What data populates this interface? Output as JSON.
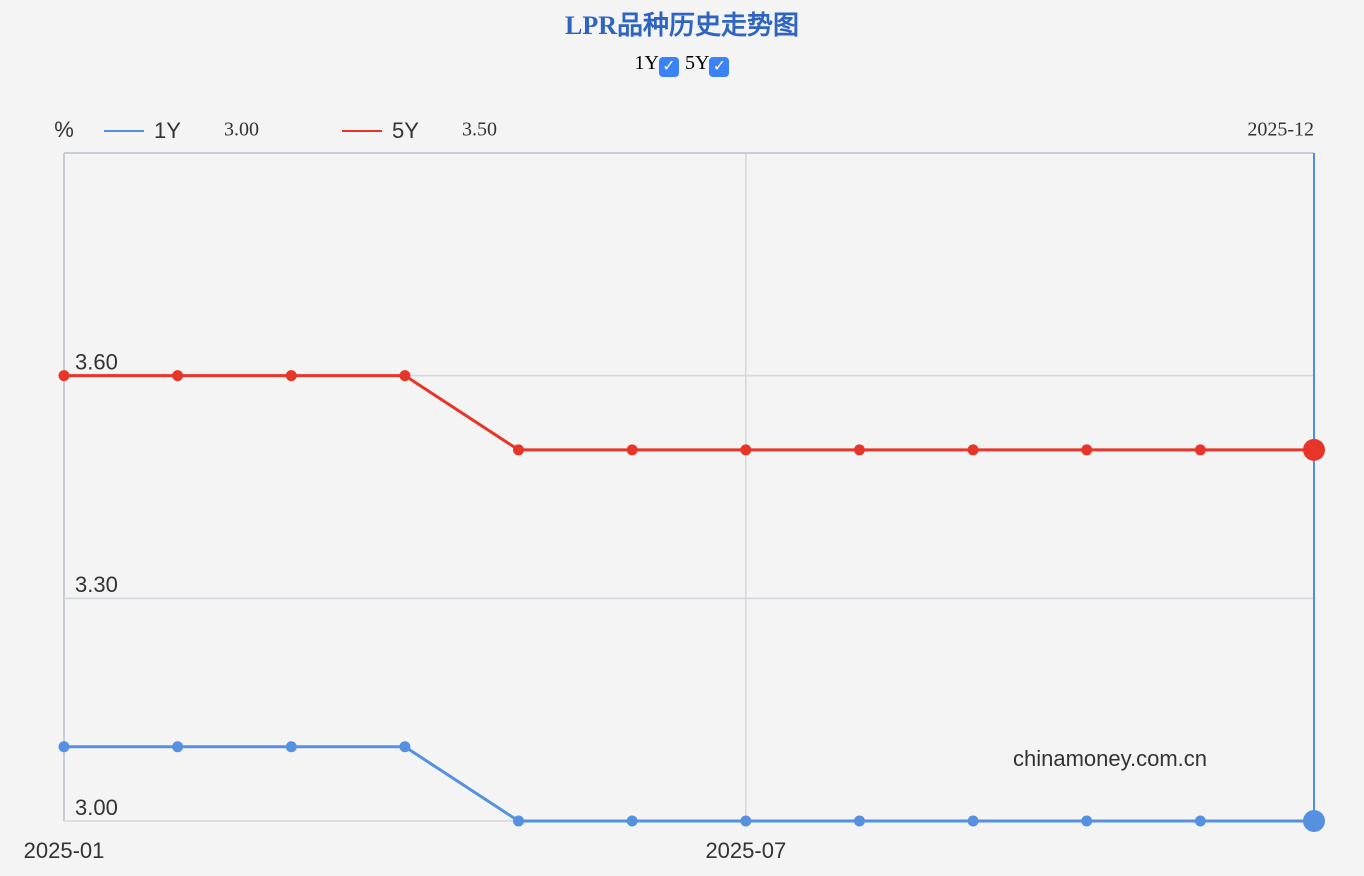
{
  "chart_data": {
    "type": "line",
    "title": "LPR品种历史走势图",
    "y_unit": "%",
    "watermark": "chinamoney.com.cn",
    "categories": [
      "2025-01",
      null,
      null,
      null,
      null,
      null,
      "2025-07",
      null,
      null,
      null,
      null,
      "2025-12"
    ],
    "series": [
      {
        "name": "1Y",
        "color": "#5591e0",
        "values": [
          3.1,
          3.1,
          3.1,
          3.1,
          3.0,
          3.0,
          3.0,
          3.0,
          3.0,
          3.0,
          3.0,
          3.0
        ]
      },
      {
        "name": "5Y",
        "color": "#e8352a",
        "values": [
          3.6,
          3.6,
          3.6,
          3.6,
          3.5,
          3.5,
          3.5,
          3.5,
          3.5,
          3.5,
          3.5,
          3.5
        ]
      }
    ],
    "hover": {
      "index": 11,
      "value_labels": [
        "3.00",
        "3.50"
      ]
    },
    "ylim": [
      3.0,
      3.9
    ],
    "yticks": [
      {
        "value": 3,
        "label": "3.00"
      },
      {
        "value": 3.3,
        "label": "3.30"
      },
      {
        "value": 3.6,
        "label": "3.60"
      }
    ],
    "grid": true
  }
}
